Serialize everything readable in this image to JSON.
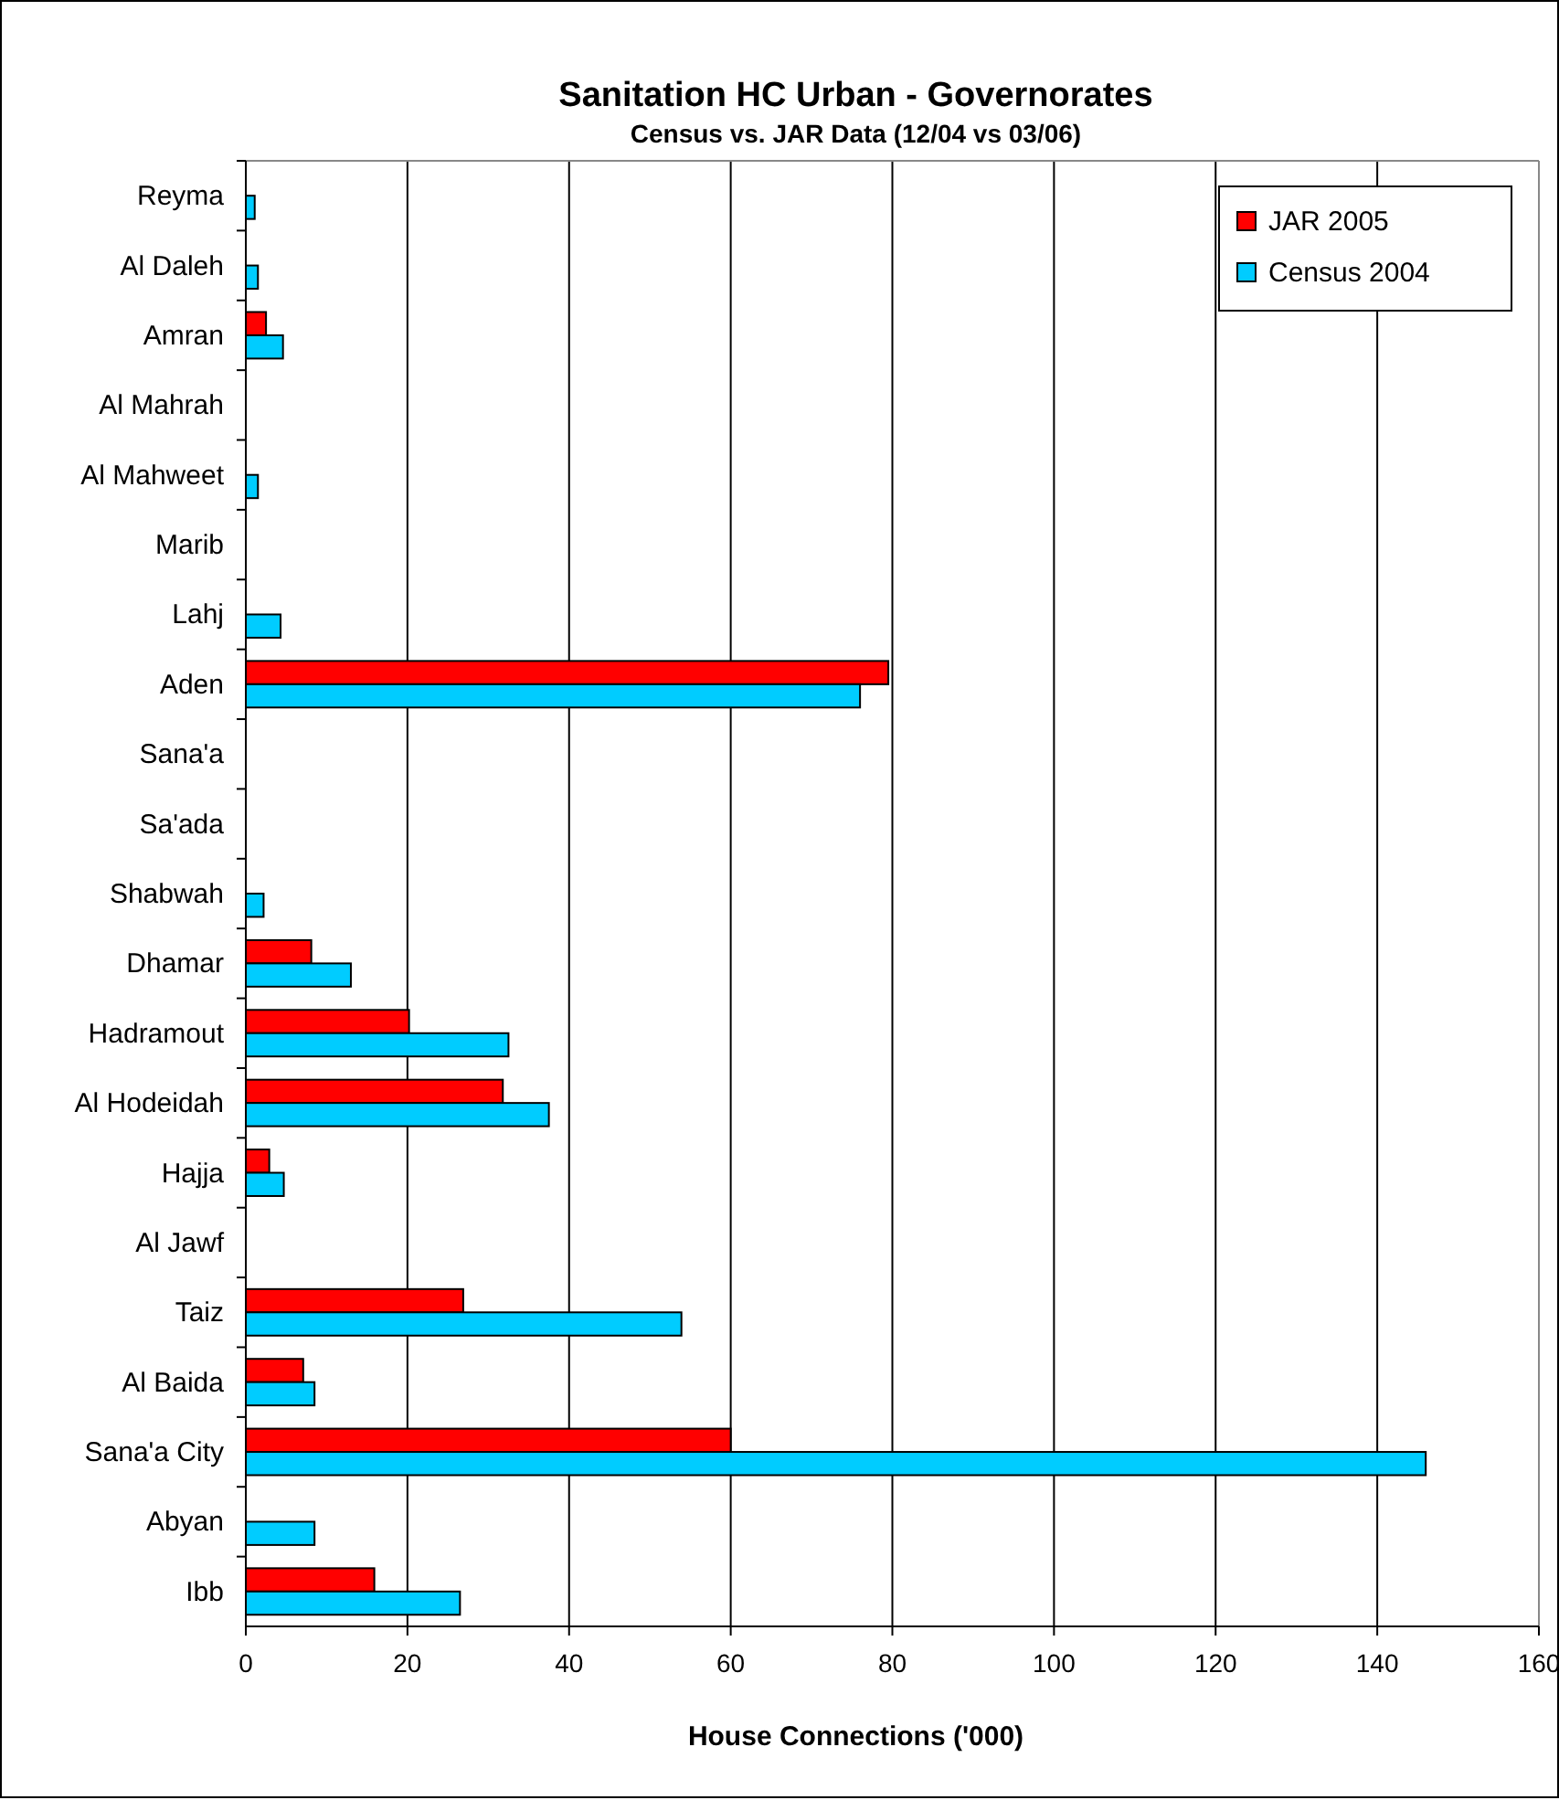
{
  "chart_data": {
    "type": "bar",
    "orientation": "horizontal",
    "title": "Sanitation HC Urban - Governorates",
    "subtitle": "Census vs. JAR Data (12/04 vs 03/06)",
    "xlabel": "House Connections ('000)",
    "categories": [
      "Reyma",
      "Al Daleh",
      "Amran",
      "Al Mahrah",
      "Al Mahweet",
      "Marib",
      "Lahj",
      "Aden",
      "Sana'a",
      "Sa'ada",
      "Shabwah",
      "Dhamar",
      "Hadramout",
      "Al Hodeidah",
      "Hajja",
      "Al Jawf",
      "Taiz",
      "Al Baida",
      "Sana'a City",
      "Abyan",
      "Ibb"
    ],
    "series": [
      {
        "name": "JAR 2005",
        "color": "#ff0000",
        "values": [
          null,
          null,
          2.5,
          null,
          null,
          null,
          null,
          79.5,
          null,
          null,
          null,
          8.1,
          20.2,
          31.8,
          2.9,
          null,
          26.9,
          7.1,
          60,
          null,
          15.9
        ]
      },
      {
        "name": "Census 2004",
        "color": "#00ccff",
        "values": [
          1.1,
          1.5,
          4.6,
          null,
          1.5,
          null,
          4.3,
          76,
          null,
          null,
          2.2,
          13,
          32.5,
          37.5,
          4.7,
          null,
          53.9,
          8.5,
          146,
          8.5,
          26.5
        ]
      }
    ],
    "xlim": [
      0,
      160
    ],
    "xticks": [
      0,
      20,
      40,
      60,
      80,
      100,
      120,
      140,
      160
    ],
    "grid": "x",
    "legend": "top right"
  }
}
